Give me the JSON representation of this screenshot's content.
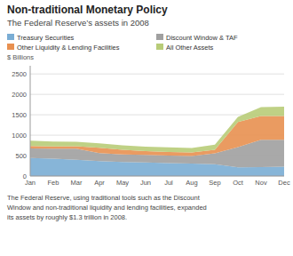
{
  "chart_data": {
    "type": "area",
    "stacked": true,
    "title": "Non-traditional Monetary Policy",
    "subtitle": "The Federal Reserve’s assets in 2008",
    "ylabel": "$ Billions",
    "caption": "The Federal Reserve, using traditional tools such as the Discount\nWindow and non-traditional liquidity and lending facilities, expanded\nits assets by roughly $1.3 trillion in 2008.",
    "categories": [
      "Jan",
      "Feb",
      "Mar",
      "Apr",
      "May",
      "Jun",
      "Jul",
      "Aug",
      "Sep",
      "Oct",
      "Nov",
      "Dec"
    ],
    "series": [
      {
        "name": "Treasury Securities",
        "color": "#7aadd4",
        "values": [
          440,
          425,
          400,
          365,
          345,
          330,
          315,
          305,
          290,
          215,
          220,
          230
        ]
      },
      {
        "name": "Discount Window & TAF",
        "color": "#a0a0a0",
        "values": [
          235,
          245,
          270,
          195,
          185,
          185,
          185,
          185,
          265,
          490,
          670,
          660
        ]
      },
      {
        "name": "Other Liquidity & Lending Facilities",
        "color": "#e89050",
        "values": [
          60,
          55,
          60,
          130,
          110,
          95,
          90,
          85,
          90,
          620,
          580,
          580
        ]
      },
      {
        "name": "All Other Assets",
        "color": "#b8cc78",
        "values": [
          130,
          120,
          110,
          110,
          110,
          110,
          110,
          110,
          120,
          125,
          220,
          230
        ]
      }
    ],
    "ylim": [
      0,
      2700
    ],
    "yticks": [
      0,
      500,
      1000,
      1500,
      2000,
      2500
    ],
    "grid": true,
    "legend": "upper left"
  }
}
